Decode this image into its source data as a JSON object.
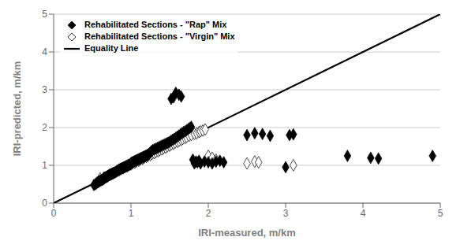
{
  "chart_data": {
    "type": "scatter",
    "xlabel": "IRI-measured, m/km",
    "ylabel": "IRI-predicted, m/km",
    "xlim": [
      0,
      5
    ],
    "ylim": [
      0,
      5
    ],
    "xticks": [
      0,
      1,
      2,
      3,
      4,
      5
    ],
    "yticks": [
      0,
      1,
      2,
      3,
      4,
      5
    ],
    "grid": "y",
    "legend": "upper left",
    "series": [
      {
        "name": "Rehabilitated Sections - \"Rap\" Mix",
        "type": "scatter",
        "color": "black",
        "marker": "diamond",
        "x": [
          0.52,
          0.54,
          0.55,
          0.56,
          0.57,
          0.58,
          0.59,
          0.6,
          0.61,
          0.62,
          0.63,
          0.64,
          0.65,
          0.65,
          0.66,
          0.67,
          0.68,
          0.69,
          0.7,
          0.7,
          0.71,
          0.72,
          0.73,
          0.74,
          0.75,
          0.76,
          0.77,
          0.78,
          0.79,
          0.8,
          0.81,
          0.82,
          0.83,
          0.84,
          0.85,
          0.86,
          0.87,
          0.88,
          0.89,
          0.9,
          0.91,
          0.92,
          0.93,
          0.94,
          0.95,
          0.96,
          0.97,
          0.98,
          0.99,
          1.0,
          1.0,
          1.01,
          1.02,
          1.03,
          1.04,
          1.05,
          1.06,
          1.07,
          1.08,
          1.09,
          1.1,
          1.11,
          1.12,
          1.13,
          1.14,
          1.15,
          1.16,
          1.17,
          1.18,
          1.19,
          1.2,
          1.21,
          1.22,
          1.23,
          1.24,
          1.25,
          1.26,
          1.27,
          1.28,
          1.3,
          1.32,
          1.34,
          1.36,
          1.38,
          1.4,
          1.42,
          1.44,
          1.46,
          1.48,
          1.5,
          1.52,
          1.54,
          1.56,
          1.58,
          1.6,
          1.62,
          1.64,
          1.66,
          1.68,
          1.7,
          1.72,
          1.74,
          1.76,
          1.78,
          1.8,
          1.82,
          1.84,
          1.86,
          1.88,
          1.9,
          1.95,
          2.0,
          2.05,
          2.1,
          2.15,
          2.2,
          2.5,
          2.6,
          2.7,
          2.8,
          3.0,
          3.05,
          3.1,
          3.8,
          4.1,
          4.2,
          4.9,
          1.52,
          1.55,
          1.58,
          1.62,
          1.65
        ],
        "values": [
          0.48,
          0.5,
          0.52,
          0.54,
          0.55,
          0.56,
          0.58,
          0.59,
          0.6,
          0.61,
          0.62,
          0.63,
          0.64,
          0.66,
          0.67,
          0.68,
          0.69,
          0.7,
          0.71,
          0.72,
          0.73,
          0.74,
          0.75,
          0.76,
          0.77,
          0.78,
          0.79,
          0.8,
          0.81,
          0.82,
          0.84,
          0.85,
          0.86,
          0.88,
          0.89,
          0.9,
          0.91,
          0.92,
          0.93,
          0.94,
          0.95,
          0.96,
          0.97,
          0.98,
          0.99,
          1.0,
          1.01,
          1.02,
          1.03,
          1.04,
          1.06,
          1.07,
          1.08,
          1.09,
          1.1,
          1.11,
          1.12,
          1.13,
          1.14,
          1.15,
          1.16,
          1.17,
          1.18,
          1.19,
          1.2,
          1.21,
          1.22,
          1.23,
          1.24,
          1.25,
          1.26,
          1.27,
          1.28,
          1.3,
          1.32,
          1.34,
          1.36,
          1.38,
          1.4,
          1.42,
          1.44,
          1.46,
          1.48,
          1.5,
          1.52,
          1.54,
          1.56,
          1.58,
          1.6,
          1.62,
          1.65,
          1.68,
          1.7,
          1.73,
          1.76,
          1.79,
          1.82,
          1.85,
          1.88,
          1.9,
          1.93,
          1.96,
          1.99,
          2.02,
          1.15,
          1.05,
          1.1,
          1.08,
          1.12,
          1.05,
          1.1,
          1.08,
          1.05,
          1.1,
          1.12,
          1.08,
          1.8,
          1.85,
          1.83,
          1.78,
          0.95,
          1.8,
          1.82,
          1.25,
          1.2,
          1.18,
          1.25,
          2.76,
          2.8,
          2.92,
          2.87,
          2.82
        ]
      },
      {
        "name": "Rehabilitated Sections - \"Virgin\"  Mix",
        "type": "scatter",
        "color": "white",
        "marker": "diamond",
        "x": [
          0.6,
          0.65,
          0.68,
          0.7,
          0.72,
          0.75,
          0.77,
          0.8,
          0.82,
          0.85,
          0.87,
          0.9,
          0.92,
          0.95,
          0.97,
          1.0,
          1.02,
          1.05,
          1.07,
          1.1,
          1.12,
          1.15,
          1.17,
          1.2,
          1.22,
          1.25,
          1.27,
          1.3,
          1.32,
          1.35,
          1.37,
          1.4,
          1.42,
          1.45,
          1.47,
          1.5,
          1.52,
          1.55,
          1.57,
          1.6,
          1.62,
          1.65,
          1.67,
          1.7,
          1.72,
          1.75,
          1.78,
          1.82,
          1.85,
          1.88,
          1.9,
          1.93,
          1.96,
          2.0,
          2.05,
          2.1,
          2.5,
          2.6,
          2.65,
          3.1
        ],
        "values": [
          0.65,
          0.68,
          0.7,
          0.72,
          0.75,
          0.78,
          0.8,
          0.82,
          0.85,
          0.87,
          0.9,
          0.92,
          0.95,
          0.97,
          1.0,
          1.02,
          1.05,
          1.07,
          1.1,
          1.12,
          1.15,
          1.17,
          1.2,
          1.22,
          1.25,
          1.27,
          1.3,
          1.32,
          1.35,
          1.37,
          1.4,
          1.42,
          1.45,
          1.47,
          1.5,
          1.52,
          1.55,
          1.57,
          1.6,
          1.62,
          1.65,
          1.67,
          1.7,
          1.72,
          1.75,
          1.78,
          1.8,
          1.83,
          1.85,
          1.88,
          1.9,
          1.92,
          1.95,
          1.25,
          1.2,
          1.15,
          1.05,
          1.1,
          1.08,
          1.0
        ]
      },
      {
        "name": "Equality Line",
        "type": "line",
        "color": "black",
        "line_style": "solid",
        "x": [
          0,
          5
        ],
        "values": [
          0,
          5
        ]
      }
    ]
  }
}
